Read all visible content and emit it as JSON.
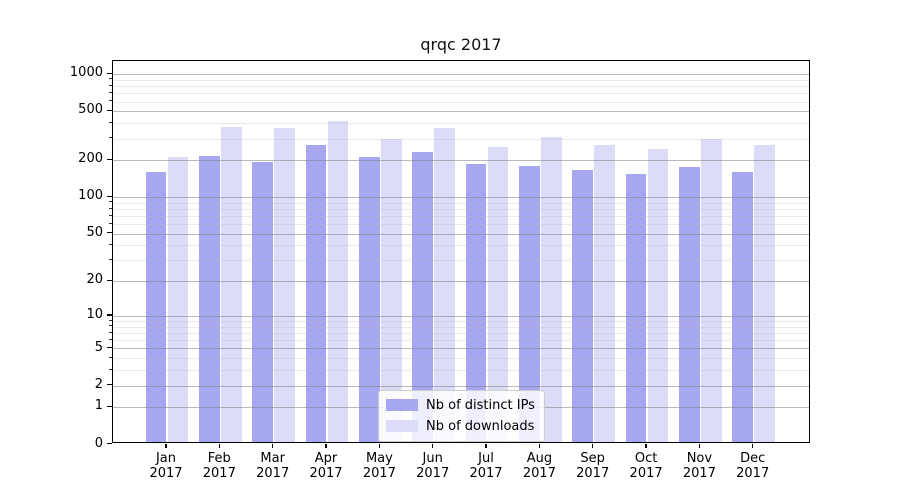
{
  "chart_data": {
    "type": "bar",
    "title": "qrqc 2017",
    "xlabel": "",
    "ylabel": "",
    "categories": [
      "Jan",
      "Feb",
      "Mar",
      "Apr",
      "May",
      "Jun",
      "Jul",
      "Aug",
      "Sep",
      "Oct",
      "Nov",
      "Dec"
    ],
    "x_tick_year": "2017",
    "series": [
      {
        "name": "Nb of distinct IPs",
        "color": "#a7a7f1",
        "values": [
          155,
          210,
          185,
          255,
          205,
          225,
          180,
          173,
          160,
          148,
          170,
          155
        ]
      },
      {
        "name": "Nb of downloads",
        "color": "#dcdcf8",
        "values": [
          205,
          360,
          350,
          400,
          285,
          355,
          245,
          295,
          255,
          240,
          285,
          255
        ]
      }
    ],
    "yscale": "log-like (log10 of 1+value)",
    "yticks": [
      0,
      1,
      2,
      5,
      10,
      20,
      50,
      100,
      200,
      500,
      1000
    ],
    "y_minor_ticks": [
      3,
      4,
      6,
      7,
      8,
      9,
      30,
      40,
      60,
      70,
      80,
      90,
      300,
      400,
      600,
      700,
      800,
      900
    ],
    "ylim": [
      0,
      1275
    ],
    "grid": "major and minor horizontal gridlines drawn over bars",
    "legend_position": "lower center",
    "colors": {
      "bar_distinct_ips": "#a7a7f1",
      "bar_downloads": "#dcdcf8",
      "major_grid": "#b4b4b4",
      "minor_grid": "#e7e7e7",
      "axis": "#000000",
      "background": "#ffffff"
    }
  }
}
